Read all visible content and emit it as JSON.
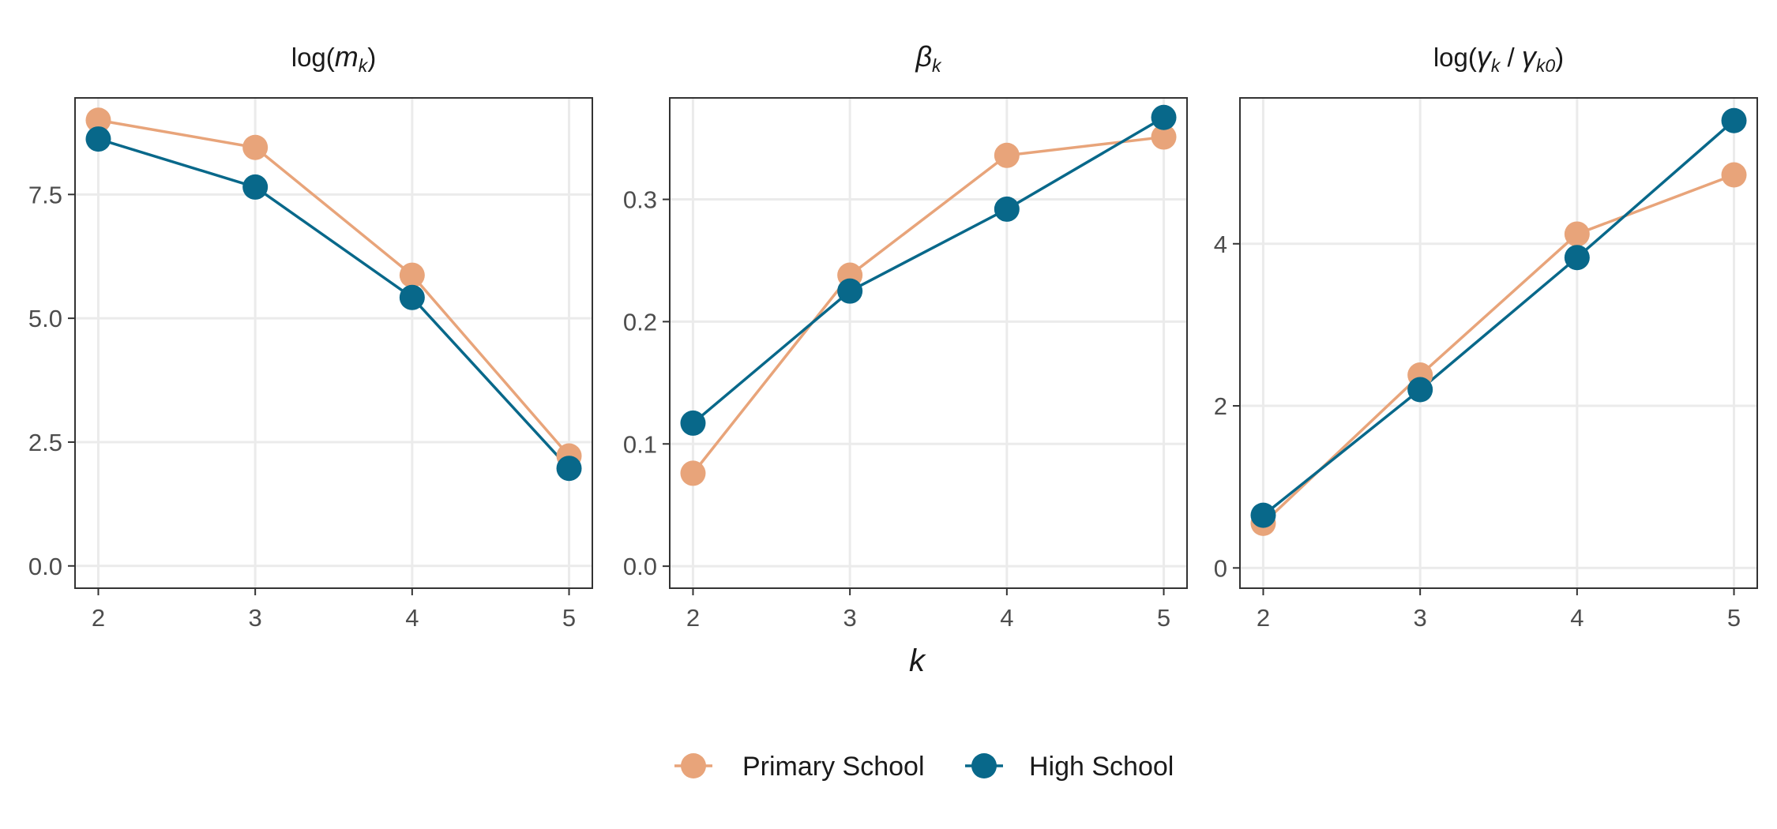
{
  "chart_data": [
    {
      "type": "line",
      "title_parts": {
        "pre": "log(",
        "sym": "m",
        "sub": "k",
        "post": ")"
      },
      "categories": [
        2,
        3,
        4,
        5
      ],
      "x_ticks": [
        "2",
        "3",
        "4",
        "5"
      ],
      "y_ticks": [
        "0.0",
        "2.5",
        "5.0",
        "7.5"
      ],
      "ylim": [
        -0.45,
        9.45
      ],
      "series": [
        {
          "name": "Primary School",
          "values": [
            9.0,
            8.45,
            5.87,
            2.22
          ]
        },
        {
          "name": "High School",
          "values": [
            8.62,
            7.65,
            5.42,
            1.97
          ]
        }
      ]
    },
    {
      "type": "line",
      "title_parts": {
        "sym": "β",
        "sub": "k"
      },
      "categories": [
        2,
        3,
        4,
        5
      ],
      "x_ticks": [
        "2",
        "3",
        "4",
        "5"
      ],
      "y_ticks": [
        "0.0",
        "0.1",
        "0.2",
        "0.3"
      ],
      "ylim": [
        -0.018,
        0.383
      ],
      "series": [
        {
          "name": "Primary School",
          "values": [
            0.076,
            0.238,
            0.336,
            0.351
          ]
        },
        {
          "name": "High School",
          "values": [
            0.117,
            0.225,
            0.292,
            0.367
          ]
        }
      ]
    },
    {
      "type": "line",
      "title_parts": {
        "pre": "log(",
        "sym": "γ",
        "sub": "k",
        "mid": " / ",
        "sym2": "γ",
        "sub2": "k0",
        "post": ")"
      },
      "categories": [
        2,
        3,
        4,
        5
      ],
      "x_ticks": [
        "2",
        "3",
        "4",
        "5"
      ],
      "y_ticks": [
        "0",
        "2",
        "4"
      ],
      "ylim": [
        -0.25,
        5.8
      ],
      "series": [
        {
          "name": "Primary School",
          "values": [
            0.55,
            2.38,
            4.12,
            4.85
          ]
        },
        {
          "name": "High School",
          "values": [
            0.65,
            2.2,
            3.83,
            5.52
          ]
        }
      ]
    }
  ],
  "shared": {
    "xlabel": "k",
    "grid": true,
    "legend_position": "bottom",
    "legend": [
      {
        "name": "Primary School",
        "color": "#E8A47A"
      },
      {
        "name": "High School",
        "color": "#08688A"
      }
    ]
  }
}
